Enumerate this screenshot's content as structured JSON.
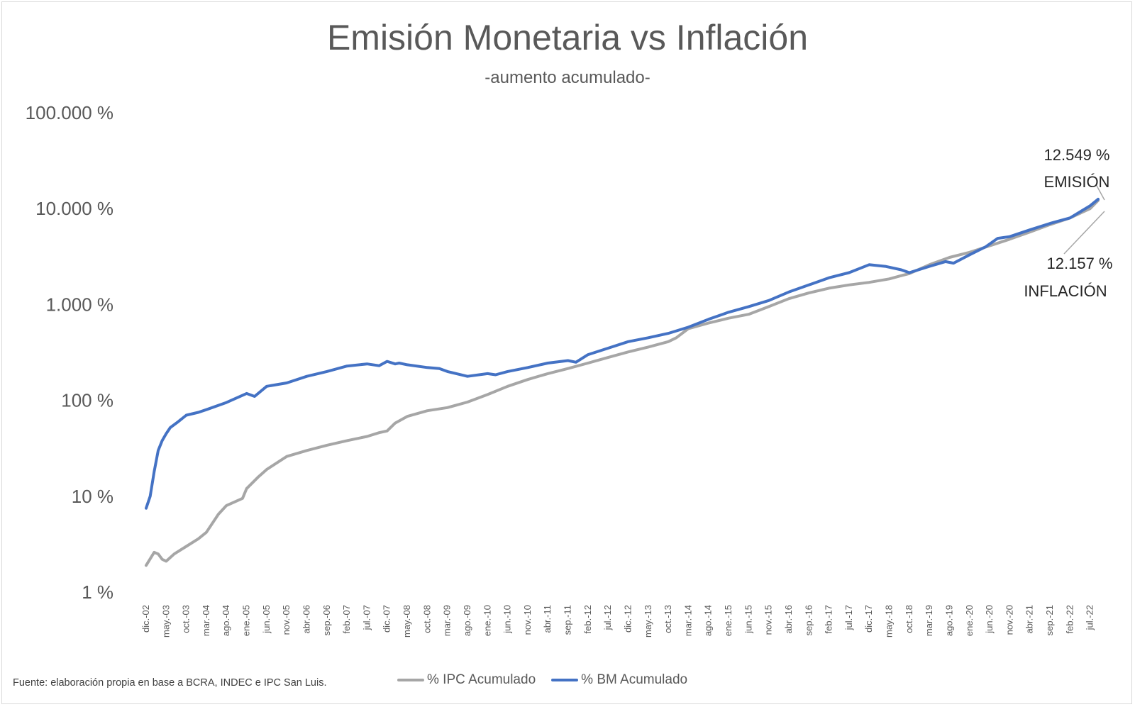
{
  "chart_data": {
    "type": "line",
    "title": "Emisión Monetaria vs Inflación",
    "subtitle": "-aumento acumulado-",
    "y_scale": "log",
    "ylim": [
      1,
      100000
    ],
    "y_tick_labels": [
      "100.000 %",
      "10.000 %",
      "1.000 %",
      "100 %",
      "10 %",
      "1 %"
    ],
    "y_tick_values": [
      100000,
      10000,
      1000,
      100,
      10,
      1
    ],
    "x_tick_labels": [
      "dic.-02",
      "may.-03",
      "oct.-03",
      "mar.-04",
      "ago.-04",
      "ene.-05",
      "jun.-05",
      "nov.-05",
      "abr.-06",
      "sep.-06",
      "feb.-07",
      "jul.-07",
      "dic.-07",
      "may.-08",
      "oct.-08",
      "mar.-09",
      "ago.-09",
      "ene.-10",
      "jun.-10",
      "nov.-10",
      "abr.-11",
      "sep.-11",
      "feb.-12",
      "jul.-12",
      "dic.-12",
      "may.-13",
      "oct.-13",
      "mar.-14",
      "ago.-14",
      "ene.-15",
      "jun.-15",
      "nov.-15",
      "abr.-16",
      "sep.-16",
      "feb.-17",
      "jul.-17",
      "dic.-17",
      "may.-18",
      "oct.-18",
      "mar.-19",
      "ago.-19",
      "ene.-20",
      "jun.-20",
      "nov.-20",
      "abr.-21",
      "sep.-21",
      "feb.-22",
      "jul.-22"
    ],
    "grid": false,
    "legend_position": "bottom",
    "series": [
      {
        "name": "% IPC Acumulado",
        "color": "#a6a6a6",
        "x": [
          "dic.-02",
          "feb.-03",
          "mar.-03",
          "abr.-03",
          "may.-03",
          "jul.-03",
          "oct.-03",
          "ene.-04",
          "mar.-04",
          "jun.-04",
          "ago.-04",
          "dic.-04",
          "ene.-05",
          "abr.-05",
          "jun.-05",
          "nov.-05",
          "abr.-06",
          "sep.-06",
          "feb.-07",
          "jul.-07",
          "oct.-07",
          "dic.-07",
          "feb.-08",
          "may.-08",
          "oct.-08",
          "mar.-09",
          "ago.-09",
          "ene.-10",
          "jun.-10",
          "nov.-10",
          "abr.-11",
          "sep.-11",
          "feb.-12",
          "jul.-12",
          "dic.-12",
          "may.-13",
          "oct.-13",
          "dic.-13",
          "mar.-14",
          "ago.-14",
          "ene.-15",
          "jun.-15",
          "nov.-15",
          "abr.-16",
          "sep.-16",
          "feb.-17",
          "jul.-17",
          "dic.-17",
          "may.-18",
          "ago.-18",
          "oct.-18",
          "mar.-19",
          "ago.-19",
          "ene.-20",
          "jun.-20",
          "nov.-20",
          "abr.-21",
          "sep.-21",
          "feb.-22",
          "jul.-22",
          "sep.-22"
        ],
        "values": [
          1.9,
          2.6,
          2.5,
          2.2,
          2.1,
          2.5,
          3.0,
          3.6,
          4.2,
          6.5,
          8.0,
          9.5,
          12,
          16,
          19,
          26,
          30,
          34,
          38,
          42,
          46,
          48,
          58,
          68,
          78,
          84,
          96,
          115,
          140,
          165,
          190,
          215,
          245,
          280,
          320,
          360,
          410,
          450,
          560,
          640,
          720,
          790,
          950,
          1150,
          1320,
          1480,
          1600,
          1700,
          1850,
          2000,
          2100,
          2600,
          3100,
          3500,
          4100,
          4800,
          5700,
          6800,
          8000,
          10000,
          12157
        ]
      },
      {
        "name": "% BM Acumulado",
        "color": "#4472c4",
        "x": [
          "dic.-02",
          "ene.-03",
          "feb.-03",
          "mar.-03",
          "abr.-03",
          "may.-03",
          "jun.-03",
          "ago.-03",
          "oct.-03",
          "ene.-04",
          "mar.-04",
          "ago.-04",
          "ene.-05",
          "mar.-05",
          "jun.-05",
          "nov.-05",
          "abr.-06",
          "sep.-06",
          "feb.-07",
          "jul.-07",
          "oct.-07",
          "dic.-07",
          "feb.-08",
          "mar.-08",
          "may.-08",
          "oct.-08",
          "ene.-09",
          "mar.-09",
          "ago.-09",
          "ene.-10",
          "mar.-10",
          "jun.-10",
          "nov.-10",
          "abr.-11",
          "sep.-11",
          "nov.-11",
          "feb.-12",
          "jul.-12",
          "dic.-12",
          "may.-13",
          "oct.-13",
          "mar.-14",
          "ago.-14",
          "ene.-15",
          "jun.-15",
          "nov.-15",
          "abr.-16",
          "sep.-16",
          "feb.-17",
          "jul.-17",
          "dic.-17",
          "abr.-18",
          "ago.-18",
          "oct.-18",
          "mar.-19",
          "jul.-19",
          "sep.-19",
          "ene.-20",
          "may.-20",
          "ago.-20",
          "nov.-20",
          "abr.-21",
          "sep.-21",
          "nov.-21",
          "feb.-22",
          "jul.-22",
          "sep.-22"
        ],
        "values": [
          7.5,
          10,
          18,
          30,
          38,
          45,
          52,
          60,
          70,
          75,
          80,
          95,
          118,
          110,
          140,
          152,
          178,
          200,
          228,
          240,
          230,
          255,
          240,
          245,
          235,
          220,
          215,
          200,
          178,
          190,
          185,
          200,
          220,
          245,
          260,
          250,
          300,
          350,
          410,
          450,
          500,
          580,
          700,
          830,
          950,
          1100,
          1350,
          1600,
          1900,
          2150,
          2600,
          2500,
          2300,
          2150,
          2500,
          2800,
          2700,
          3300,
          4000,
          4900,
          5100,
          6000,
          7000,
          7400,
          8000,
          10700,
          12549
        ]
      }
    ],
    "annotations": [
      {
        "value": "12.549 %",
        "label": "EMISIÓN"
      },
      {
        "value": "12.157 %",
        "label": "INFLACIÓN"
      }
    ]
  },
  "source_text": "Fuente: elaboración propia en base a BCRA, INDEC e IPC San Luis."
}
